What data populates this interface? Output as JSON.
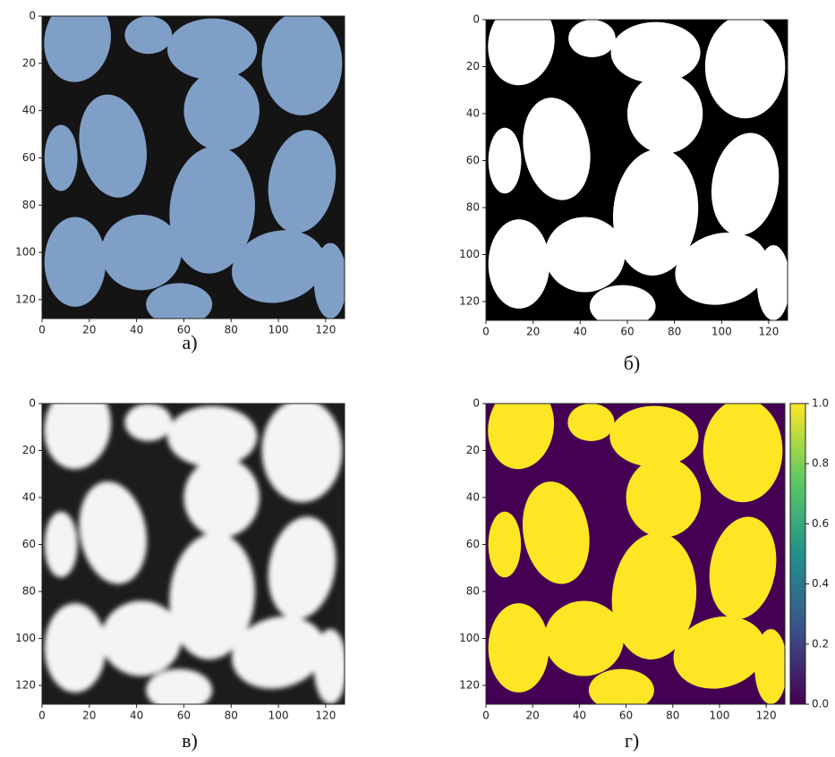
{
  "chart_data": [
    {
      "type": "image",
      "caption": "а)",
      "xlim": [
        0,
        128
      ],
      "ylim": [
        128,
        0
      ],
      "xticks": [
        0,
        20,
        40,
        60,
        80,
        100,
        120
      ],
      "yticks": [
        0,
        20,
        40,
        60,
        80,
        100,
        120
      ]
    },
    {
      "type": "image",
      "caption": "б)",
      "xlim": [
        0,
        128
      ],
      "ylim": [
        128,
        0
      ],
      "xticks": [
        0,
        20,
        40,
        60,
        80,
        100,
        120
      ],
      "yticks": [
        0,
        20,
        40,
        60,
        80,
        100,
        120
      ]
    },
    {
      "type": "image",
      "caption": "в)",
      "xlim": [
        0,
        128
      ],
      "ylim": [
        128,
        0
      ],
      "xticks": [
        0,
        20,
        40,
        60,
        80,
        100,
        120
      ],
      "yticks": [
        0,
        20,
        40,
        60,
        80,
        100,
        120
      ]
    },
    {
      "type": "image",
      "caption": "г)",
      "xlim": [
        0,
        128
      ],
      "ylim": [
        128,
        0
      ],
      "xticks": [
        0,
        20,
        40,
        60,
        80,
        100,
        120
      ],
      "yticks": [
        0,
        20,
        40,
        60,
        80,
        100,
        120
      ],
      "colorbar": {
        "lim": [
          0,
          1
        ],
        "ticks": [
          {
            "value": 0,
            "label": "0.0"
          },
          0.2,
          0.4,
          0.6,
          0.8,
          {
            "value": 1,
            "label": "1.0"
          }
        ]
      }
    }
  ]
}
